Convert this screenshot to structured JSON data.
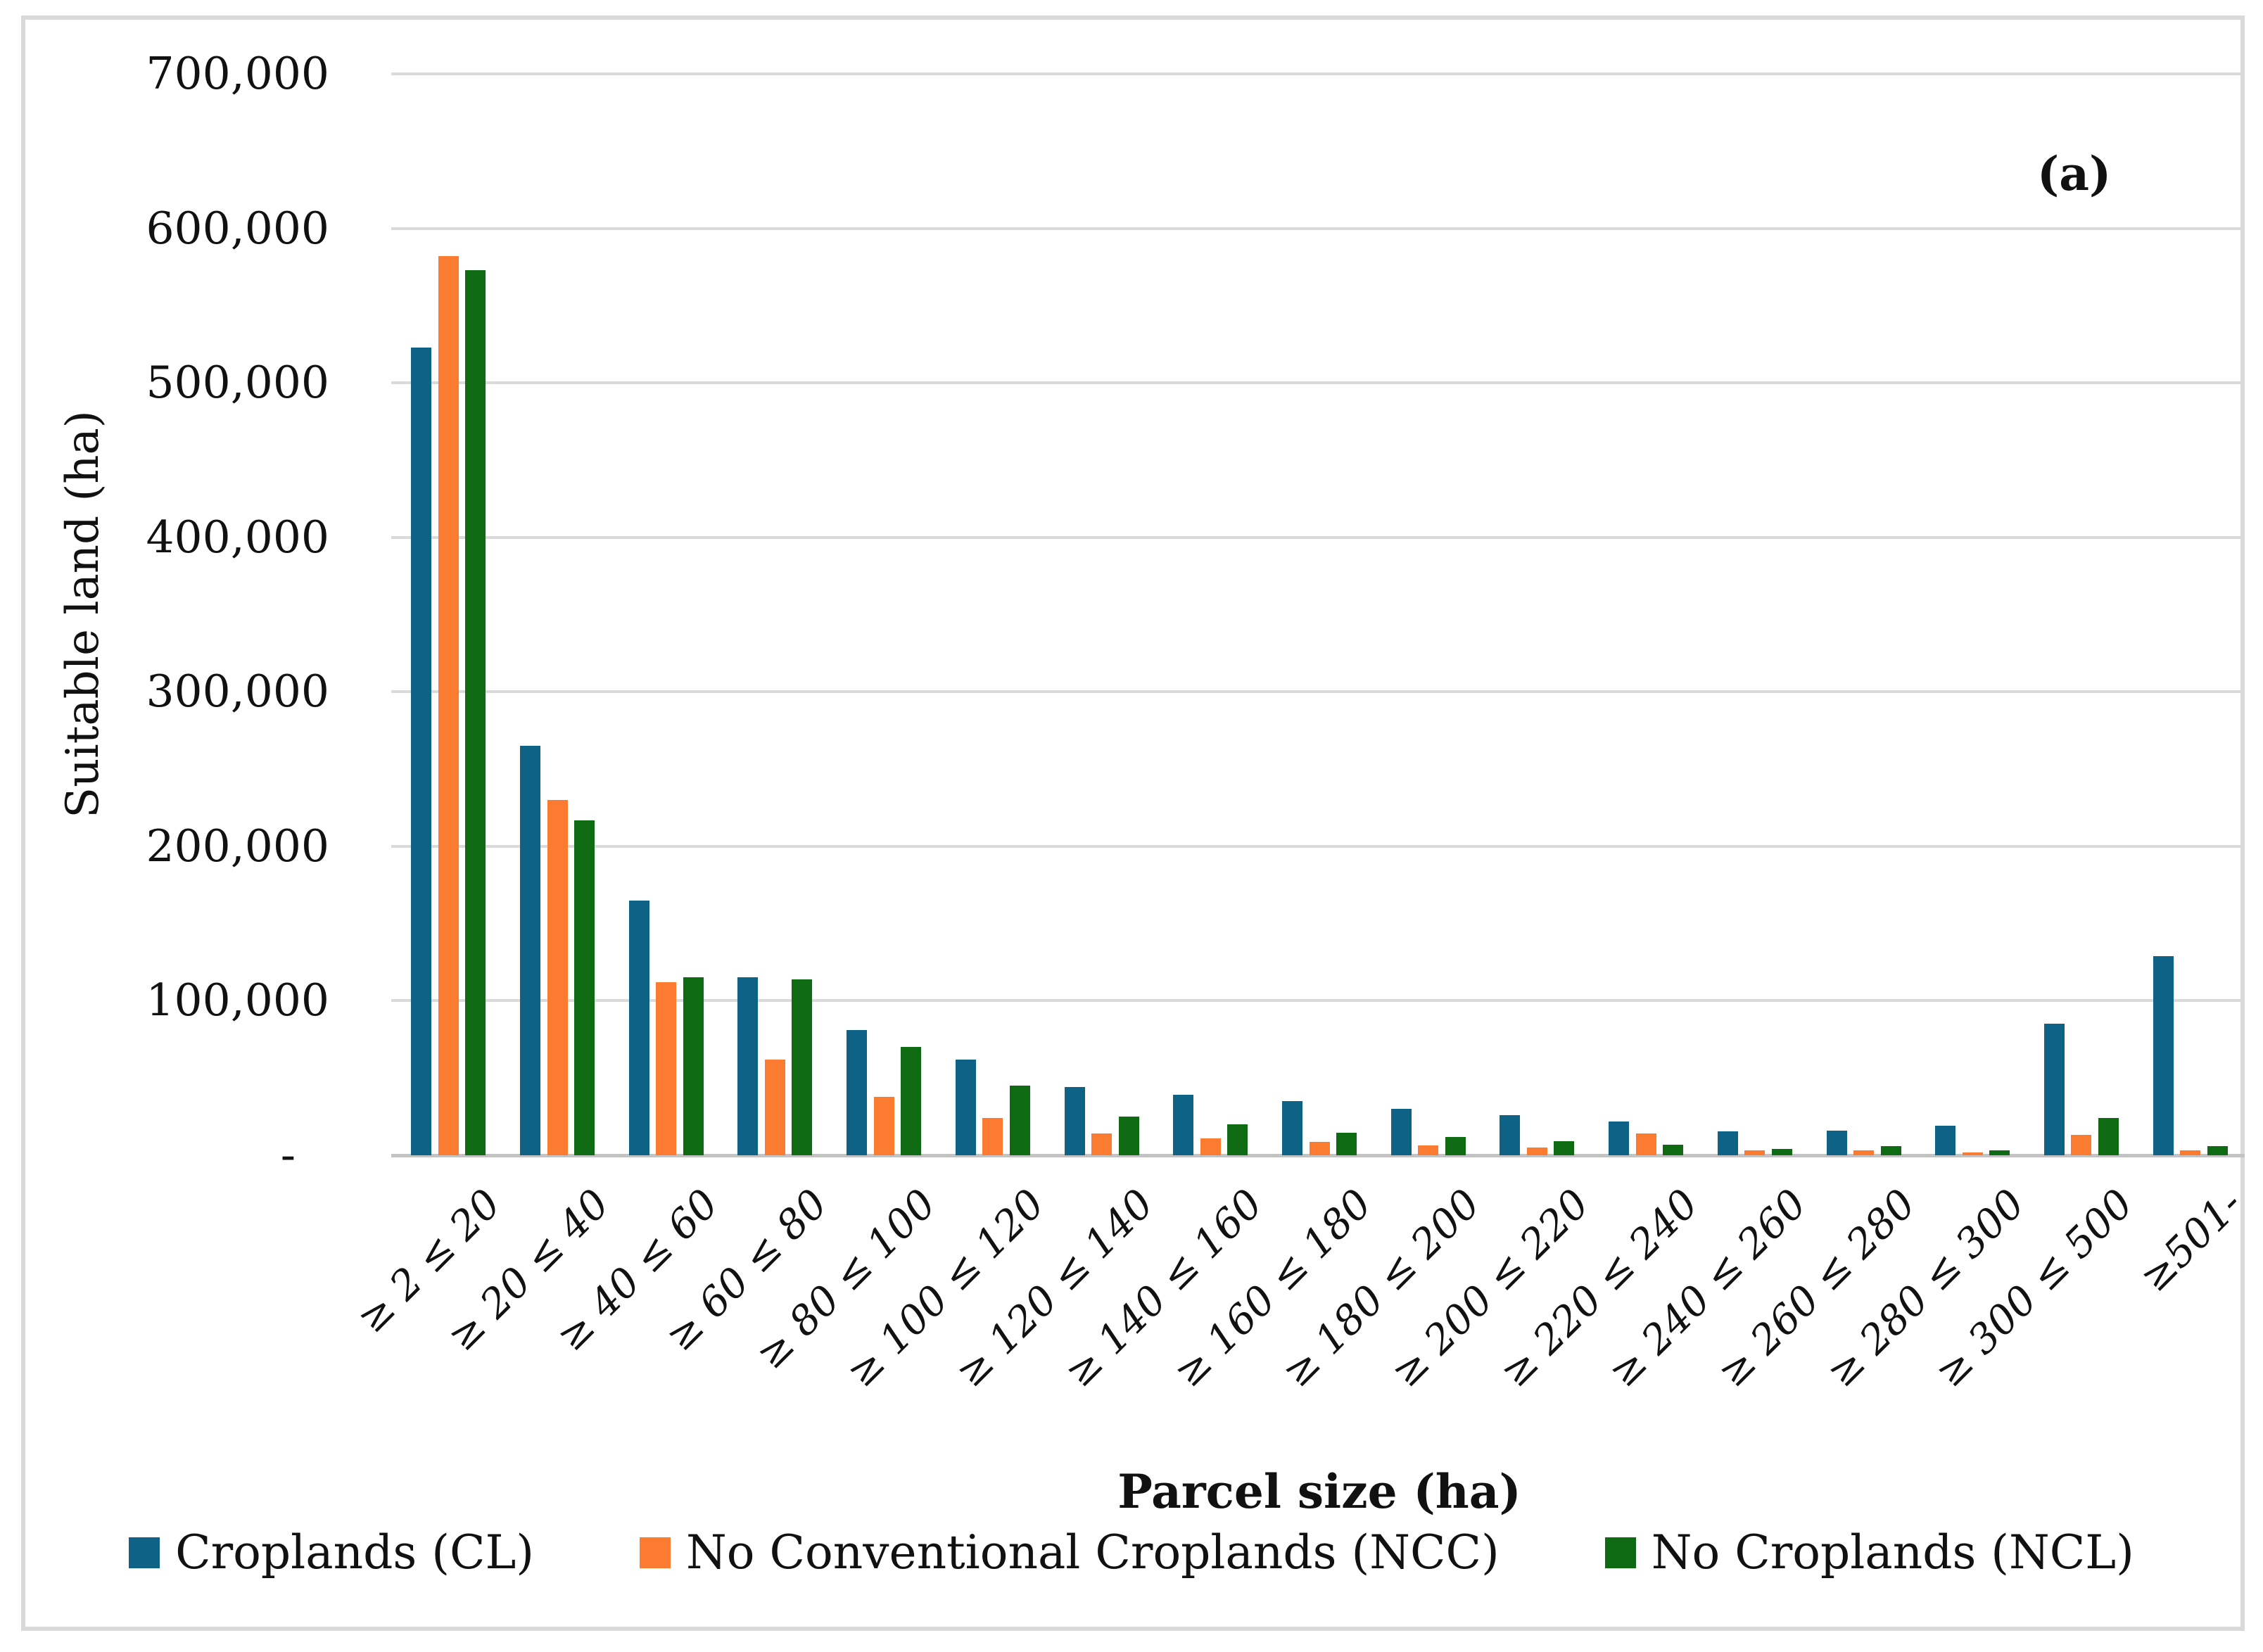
{
  "figure": {
    "panel_label": "(a)"
  },
  "chart_data": {
    "type": "bar",
    "title": "",
    "xlabel": "Parcel size (ha)",
    "ylabel": "Suitable land (ha)",
    "ylim": [
      0,
      700000
    ],
    "ytick_step": 100000,
    "ytick_labels": [
      "700,000",
      "600,000",
      "500,000",
      "400,000",
      "300,000",
      "200,000",
      "100,000",
      "-"
    ],
    "grid": "horizontal",
    "legend_position": "bottom",
    "categories": [
      "≥ 2 ≤ 20",
      "≥ 20 ≤ 40",
      "≥ 40 ≤ 60",
      "≥ 60 ≤ 80",
      "≥ 80 ≤ 100",
      "≥ 100 ≤ 120",
      "≥ 120 ≤ 140",
      "≥ 140 ≤ 160",
      "≥ 160 ≤ 180",
      "≥ 180 ≤ 200",
      "≥ 200 ≤ 220",
      "≥ 220 ≤ 240",
      "≥ 240 ≤ 260",
      "≥ 260 ≤ 280",
      "≥ 280 ≤ 300",
      "≥ 300 ≤ 500",
      "≥501-"
    ],
    "series": [
      {
        "name": "Croplands (CL)",
        "color": "#0D6285",
        "values": [
          523000,
          265000,
          165000,
          115000,
          81000,
          62000,
          44000,
          39000,
          35000,
          30000,
          26000,
          22000,
          15500,
          16000,
          19000,
          85000,
          129000
        ]
      },
      {
        "name": "No Conventional Croplands (NCC)",
        "color": "#FB7C31",
        "values": [
          582000,
          230000,
          112000,
          62000,
          38000,
          24000,
          14000,
          11000,
          8500,
          6500,
          5000,
          14000,
          3000,
          3000,
          2000,
          13000,
          3000
        ]
      },
      {
        "name": "No Croplands (NCL)",
        "color": "#0E6B14",
        "values": [
          573000,
          217000,
          115000,
          114000,
          70000,
          45000,
          25000,
          20000,
          14500,
          12000,
          9000,
          7000,
          4000,
          6000,
          3000,
          24000,
          6000
        ]
      }
    ]
  }
}
